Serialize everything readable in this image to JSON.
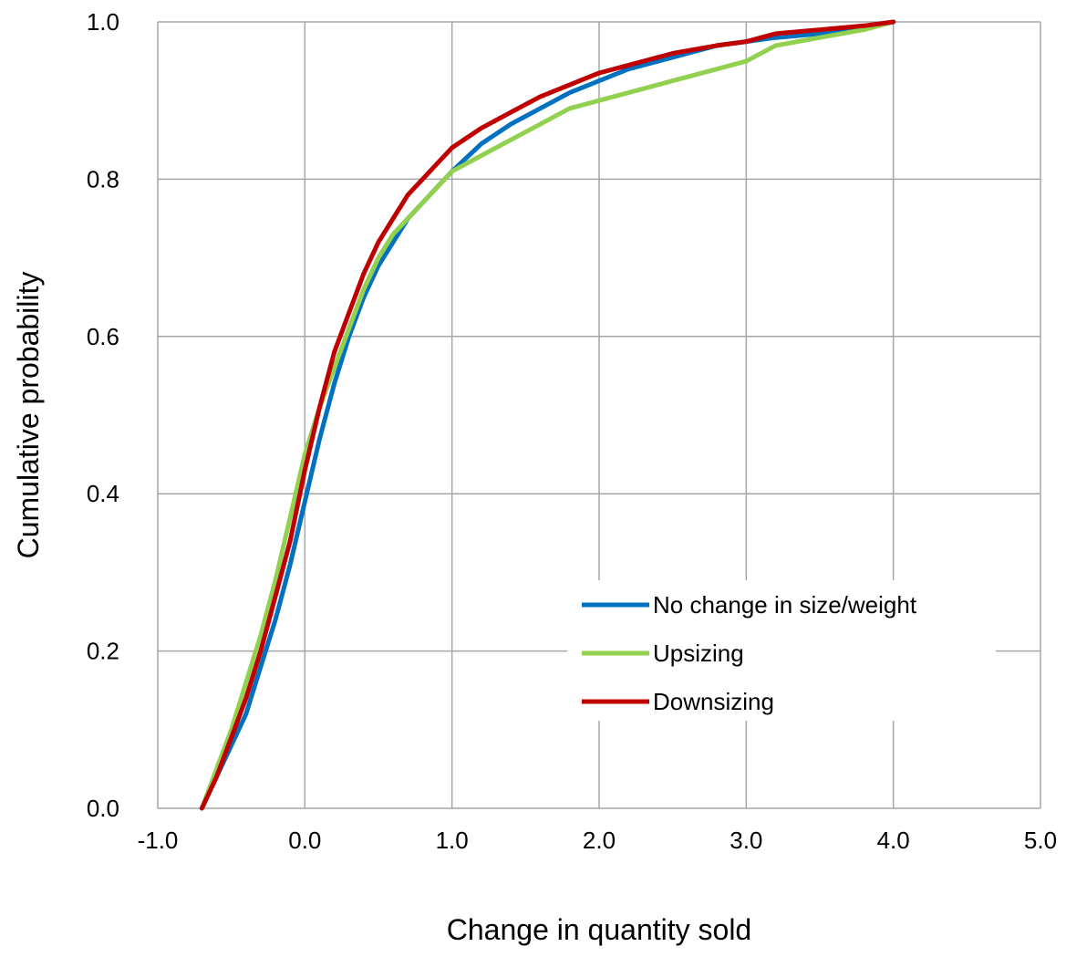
{
  "chart_data": {
    "type": "line",
    "title": "",
    "xlabel": "Change in quantity sold",
    "ylabel": "Cumulative probability",
    "xlim": [
      -1.0,
      5.0
    ],
    "ylim": [
      0.0,
      1.0
    ],
    "xticks": [
      -1.0,
      0.0,
      1.0,
      2.0,
      3.0,
      4.0,
      5.0
    ],
    "yticks": [
      0.0,
      0.2,
      0.4,
      0.6,
      0.8,
      1.0
    ],
    "xtick_labels": [
      "-1.0",
      "0.0",
      "1.0",
      "2.0",
      "3.0",
      "4.0",
      "5.0"
    ],
    "ytick_labels": [
      "0.0",
      "0.2",
      "0.4",
      "0.6",
      "0.8",
      "1.0"
    ],
    "grid": true,
    "legend_position": "lower-right",
    "series": [
      {
        "name": "No change in size/weight",
        "color": "#0070C0",
        "x": [
          -0.7,
          -0.6,
          -0.5,
          -0.4,
          -0.3,
          -0.2,
          -0.1,
          0.0,
          0.1,
          0.2,
          0.3,
          0.4,
          0.5,
          0.6,
          0.7,
          0.8,
          0.9,
          1.0,
          1.2,
          1.4,
          1.6,
          1.8,
          2.0,
          2.2,
          2.5,
          2.8,
          3.0,
          3.2,
          3.5,
          3.8,
          4.0
        ],
        "y": [
          0.0,
          0.04,
          0.08,
          0.12,
          0.18,
          0.24,
          0.31,
          0.39,
          0.47,
          0.54,
          0.6,
          0.65,
          0.69,
          0.72,
          0.75,
          0.77,
          0.79,
          0.81,
          0.845,
          0.87,
          0.89,
          0.91,
          0.925,
          0.94,
          0.955,
          0.97,
          0.975,
          0.98,
          0.985,
          0.993,
          1.0
        ]
      },
      {
        "name": "Upsizing",
        "color": "#92D050",
        "x": [
          -0.7,
          -0.6,
          -0.5,
          -0.4,
          -0.3,
          -0.2,
          -0.1,
          0.0,
          0.1,
          0.2,
          0.3,
          0.4,
          0.5,
          0.6,
          0.7,
          0.8,
          0.9,
          1.0,
          1.2,
          1.4,
          1.6,
          1.8,
          2.0,
          2.2,
          2.5,
          2.8,
          3.0,
          3.2,
          3.5,
          3.8,
          4.0
        ],
        "y": [
          0.0,
          0.05,
          0.1,
          0.16,
          0.22,
          0.29,
          0.37,
          0.45,
          0.51,
          0.56,
          0.61,
          0.66,
          0.7,
          0.73,
          0.75,
          0.77,
          0.79,
          0.81,
          0.83,
          0.85,
          0.87,
          0.89,
          0.9,
          0.91,
          0.925,
          0.94,
          0.95,
          0.97,
          0.98,
          0.99,
          1.0
        ]
      },
      {
        "name": "Downsizing",
        "color": "#C00000",
        "x": [
          -0.7,
          -0.6,
          -0.5,
          -0.4,
          -0.3,
          -0.2,
          -0.1,
          0.0,
          0.1,
          0.2,
          0.3,
          0.4,
          0.5,
          0.6,
          0.7,
          0.8,
          0.9,
          1.0,
          1.2,
          1.4,
          1.6,
          1.8,
          2.0,
          2.2,
          2.5,
          2.8,
          3.0,
          3.2,
          3.5,
          3.8,
          4.0
        ],
        "y": [
          0.0,
          0.04,
          0.09,
          0.14,
          0.2,
          0.27,
          0.34,
          0.43,
          0.51,
          0.58,
          0.63,
          0.68,
          0.72,
          0.75,
          0.78,
          0.8,
          0.82,
          0.84,
          0.865,
          0.885,
          0.905,
          0.92,
          0.935,
          0.945,
          0.96,
          0.97,
          0.975,
          0.985,
          0.99,
          0.995,
          1.0
        ]
      }
    ]
  }
}
